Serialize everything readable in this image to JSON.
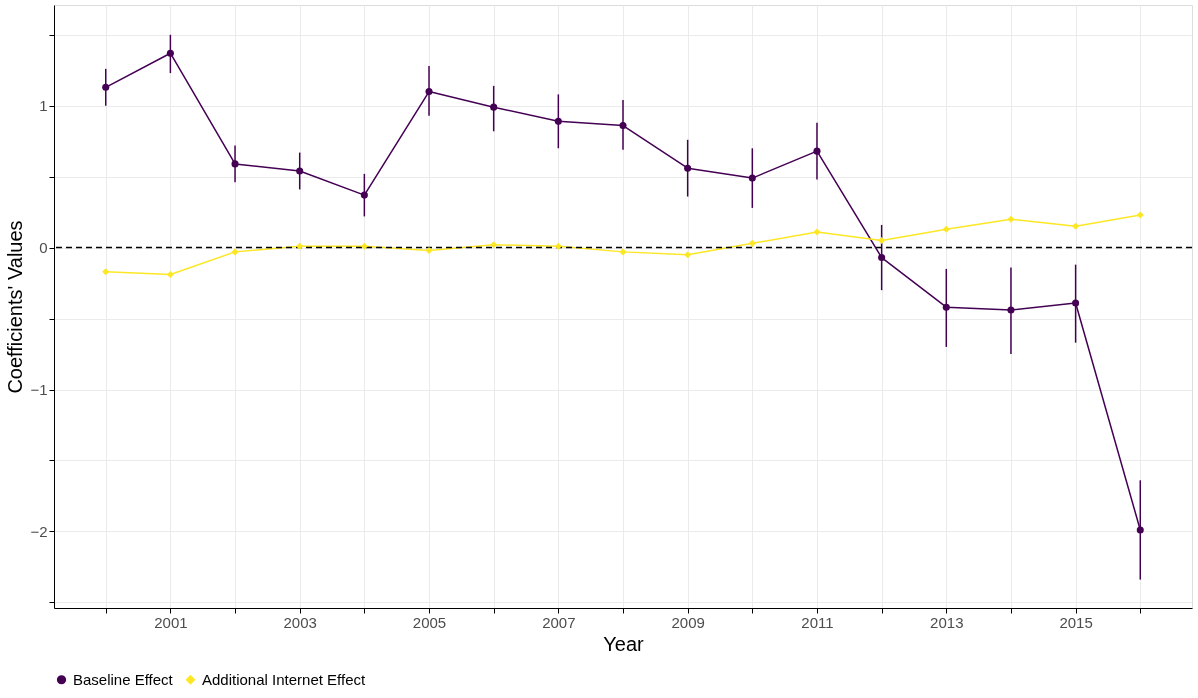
{
  "chart_data": {
    "type": "line",
    "xlabel": "Year",
    "ylabel": "Coefficients' Values",
    "x": [
      2000,
      2001,
      2002,
      2003,
      2004,
      2005,
      2006,
      2007,
      2008,
      2009,
      2010,
      2011,
      2012,
      2013,
      2014,
      2015,
      2016
    ],
    "series": [
      {
        "name": "Baseline Effect",
        "color": "#440154",
        "marker": "circle",
        "values": [
          1.13,
          1.37,
          0.59,
          0.54,
          0.37,
          1.1,
          0.99,
          0.89,
          0.86,
          0.56,
          0.49,
          0.68,
          -0.07,
          -0.42,
          -0.44,
          -0.39,
          -1.99
        ],
        "errors": [
          [
            1.0,
            1.26
          ],
          [
            1.23,
            1.5
          ],
          [
            0.46,
            0.72
          ],
          [
            0.41,
            0.67
          ],
          [
            0.22,
            0.52
          ],
          [
            0.93,
            1.28
          ],
          [
            0.82,
            1.14
          ],
          [
            0.7,
            1.08
          ],
          [
            0.69,
            1.04
          ],
          [
            0.36,
            0.76
          ],
          [
            0.28,
            0.7
          ],
          [
            0.48,
            0.88
          ],
          [
            -0.3,
            0.16
          ],
          [
            -0.7,
            -0.15
          ],
          [
            -0.75,
            -0.14
          ],
          [
            -0.67,
            -0.12
          ],
          [
            -2.34,
            -1.64
          ]
        ]
      },
      {
        "name": "Additional Internet Effect",
        "color": "#fde725",
        "marker": "diamond",
        "values": [
          -0.17,
          -0.19,
          -0.03,
          0.01,
          0.01,
          -0.02,
          0.02,
          0.01,
          -0.03,
          -0.05,
          0.03,
          0.11,
          0.05,
          0.13,
          0.2,
          0.15,
          0.23
        ]
      }
    ],
    "xlim": [
      1999.2,
      2016.8
    ],
    "xticks": [
      {
        "value": 2000,
        "label": null
      },
      2001,
      {
        "value": 2002,
        "label": null
      },
      2003,
      {
        "value": 2004,
        "label": null
      },
      2005,
      {
        "value": 2006,
        "label": null
      },
      2007,
      {
        "value": 2008,
        "label": null
      },
      2009,
      {
        "value": 2010,
        "label": null
      },
      2011,
      {
        "value": 2012,
        "label": null
      },
      2013,
      {
        "value": 2014,
        "label": null
      },
      2015,
      {
        "value": 2016,
        "label": null
      }
    ],
    "ylim": [
      -2.54,
      1.71
    ],
    "yticks": [
      {
        "value": -2.5,
        "label": null
      },
      {
        "value": -2,
        "label": "−2"
      },
      {
        "value": -1.5,
        "label": null
      },
      {
        "value": -1,
        "label": "−1"
      },
      {
        "value": -0.5,
        "label": null
      },
      0,
      {
        "value": 0.5,
        "label": null
      },
      1,
      {
        "value": 1.5,
        "label": null
      }
    ],
    "ref_lines": [
      {
        "axis": "y",
        "value": 0,
        "color": "#000000",
        "line_style": "dashed"
      }
    ],
    "grid": true,
    "legend": "bottom",
    "line_style": "solid"
  }
}
